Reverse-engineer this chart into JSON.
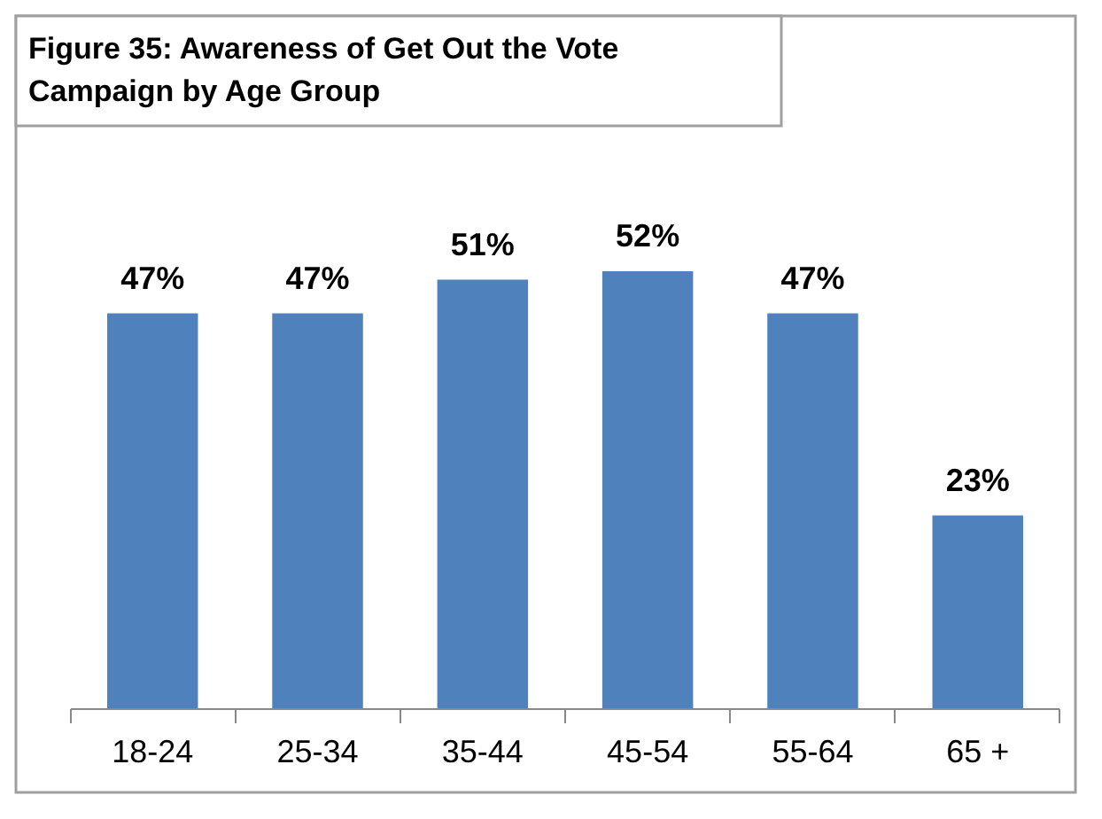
{
  "chart_data": {
    "type": "bar",
    "title": "Figure 35: Awareness of Get Out the Vote Campaign by Age Group",
    "categories": [
      "18-24",
      "25-34",
      "35-44",
      "45-54",
      "55-64",
      "65 +"
    ],
    "values": [
      47,
      47,
      51,
      52,
      47,
      23
    ],
    "value_labels": [
      "47%",
      "47%",
      "51%",
      "52%",
      "47%",
      "23%"
    ],
    "color": "#4f81bd"
  }
}
